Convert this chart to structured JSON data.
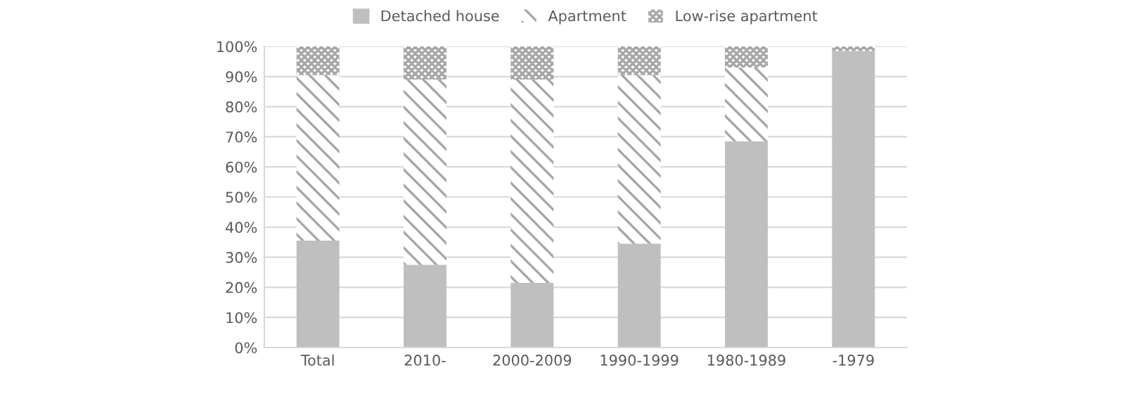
{
  "chart_data": {
    "type": "bar",
    "stacked": true,
    "categories": [
      "Total",
      "2010-",
      "2000-2009",
      "1990-1999",
      "1980-1989",
      "-1979"
    ],
    "series": [
      {
        "name": "Detached house",
        "color": "#bfbfbf",
        "values": [
          35.5,
          27.5,
          21.5,
          34.5,
          68.5,
          98.5
        ]
      },
      {
        "name": "Apartment",
        "color": "#a6a6a6",
        "values": [
          55,
          61.5,
          67.5,
          56,
          24.5,
          0
        ]
      },
      {
        "name": "Low-rise apartment",
        "color": "#a6a6a6",
        "values": [
          9.5,
          11,
          11,
          9.5,
          7,
          1.5
        ]
      }
    ],
    "ylim": [
      0,
      100
    ],
    "yticks": [
      {
        "value": 0,
        "label": "0%"
      },
      {
        "value": 10,
        "label": "10%"
      },
      {
        "value": 20,
        "label": "20%"
      },
      {
        "value": 30,
        "label": "30%"
      },
      {
        "value": 40,
        "label": "40%"
      },
      {
        "value": 50,
        "label": "50%"
      },
      {
        "value": 60,
        "label": "60%"
      },
      {
        "value": 70,
        "label": "70%"
      },
      {
        "value": 80,
        "label": "80%"
      },
      {
        "value": 90,
        "label": "90%"
      },
      {
        "value": 100,
        "label": "100%"
      }
    ],
    "grid": "y",
    "legend": "top"
  }
}
